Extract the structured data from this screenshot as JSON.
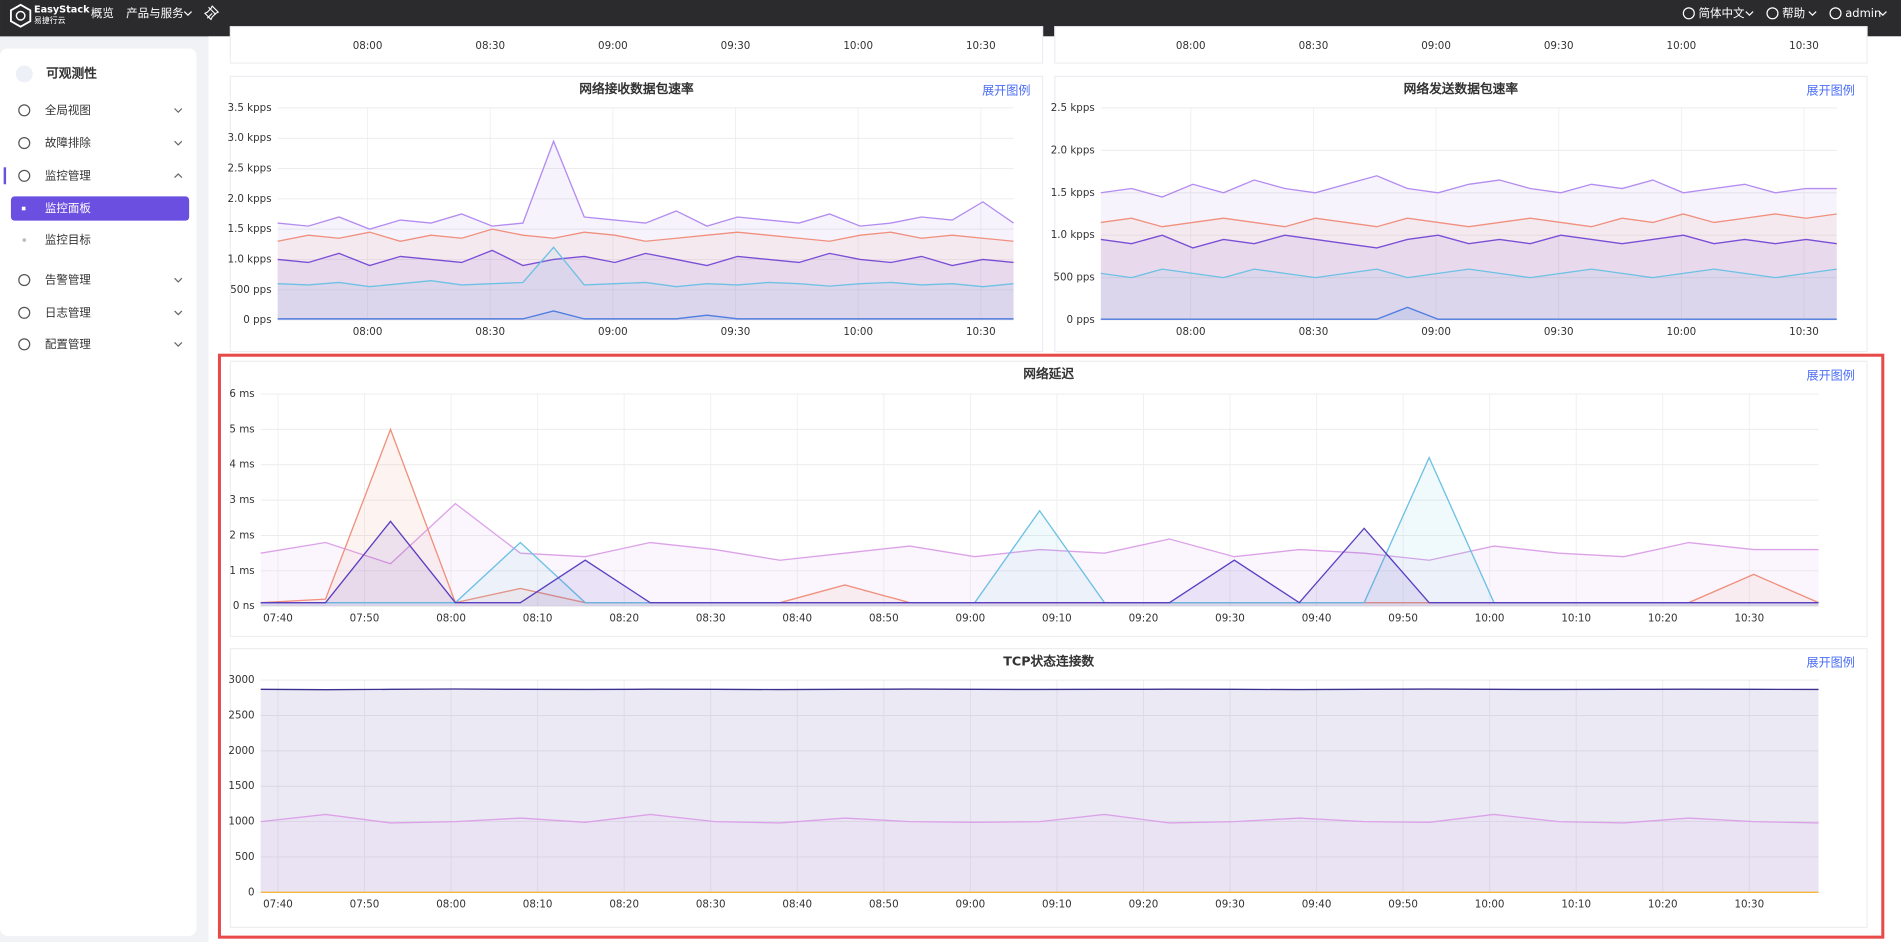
{
  "header": {
    "brand": "EasyStack",
    "brand_sub": "易捷行云",
    "nav": [
      "概览",
      "产品与服务"
    ],
    "right": [
      "简体中文",
      "帮助",
      "admin"
    ]
  },
  "sidebar": {
    "title": "可观测性",
    "items": [
      "全局视图",
      "故障排除",
      "监控管理",
      "监控面板",
      "监控目标",
      "告警管理",
      "日志管理",
      "配置管理"
    ]
  },
  "chart_data": [
    {
      "type": "line",
      "xlim": [
        458,
        638
      ],
      "xticks": [
        {
          "value": 480,
          "label": "08:00"
        },
        {
          "value": 510,
          "label": "08:30"
        },
        {
          "value": 540,
          "label": "09:00"
        },
        {
          "value": 570,
          "label": "09:30"
        },
        {
          "value": 600,
          "label": "10:00"
        },
        {
          "value": 630,
          "label": "10:30"
        }
      ],
      "series": []
    },
    {
      "type": "line",
      "xlim": [
        458,
        638
      ],
      "xticks": [
        {
          "value": 480,
          "label": "08:00"
        },
        {
          "value": 510,
          "label": "08:30"
        },
        {
          "value": 540,
          "label": "09:00"
        },
        {
          "value": 570,
          "label": "09:30"
        },
        {
          "value": 600,
          "label": "10:00"
        },
        {
          "value": 630,
          "label": "10:30"
        }
      ],
      "series": []
    },
    {
      "type": "line",
      "title": "网络接收数据包速率",
      "legend_toggle": "展开图例",
      "area": true,
      "grid": true,
      "x": [
        458,
        465.5,
        473,
        480.5,
        488,
        495.5,
        503,
        510.5,
        518,
        525.5,
        533,
        540.5,
        548,
        555.5,
        563,
        570.5,
        578,
        585.5,
        593,
        600.5,
        608,
        615.5,
        623,
        630.5,
        638
      ],
      "xlim": [
        458,
        638
      ],
      "xticks": [
        {
          "value": 480,
          "label": "08:00"
        },
        {
          "value": 510,
          "label": "08:30"
        },
        {
          "value": 540,
          "label": "09:00"
        },
        {
          "value": 570,
          "label": "09:30"
        },
        {
          "value": 600,
          "label": "10:00"
        },
        {
          "value": 630,
          "label": "10:30"
        }
      ],
      "ylim": [
        0,
        3500
      ],
      "yticks": [
        {
          "value": 0,
          "label": "0 pps"
        },
        {
          "value": 500,
          "label": "500 pps"
        },
        {
          "value": 1000,
          "label": "1.0 kpps"
        },
        {
          "value": 1500,
          "label": "1.5 kpps"
        },
        {
          "value": 2000,
          "label": "2.0 kpps"
        },
        {
          "value": 2500,
          "label": "2.5 kpps"
        },
        {
          "value": 3000,
          "label": "3.0 kpps"
        },
        {
          "value": 3500,
          "label": "3.5 kpps"
        }
      ],
      "series": [
        {
          "color": "#b48cf0",
          "values": [
            1600,
            1550,
            1700,
            1500,
            1650,
            1600,
            1750,
            1550,
            1600,
            2950,
            1700,
            1650,
            1600,
            1800,
            1550,
            1700,
            1650,
            1600,
            1750,
            1550,
            1600,
            1700,
            1650,
            1950,
            1600
          ]
        },
        {
          "color": "#f0907e",
          "values": [
            1300,
            1400,
            1350,
            1450,
            1300,
            1400,
            1350,
            1500,
            1400,
            1350,
            1450,
            1400,
            1300,
            1350,
            1400,
            1450,
            1400,
            1350,
            1300,
            1400,
            1450,
            1350,
            1400,
            1350,
            1300
          ]
        },
        {
          "color": "#7a4fd6",
          "values": [
            1000,
            950,
            1100,
            900,
            1050,
            1000,
            950,
            1150,
            900,
            1000,
            1050,
            950,
            1100,
            1000,
            900,
            1050,
            1000,
            950,
            1100,
            1000,
            950,
            1050,
            900,
            1000,
            950
          ]
        },
        {
          "color": "#6ec1e4",
          "values": [
            600,
            580,
            620,
            550,
            600,
            650,
            580,
            600,
            620,
            1200,
            580,
            600,
            620,
            550,
            600,
            580,
            620,
            600,
            560,
            600,
            620,
            580,
            600,
            550,
            600
          ]
        },
        {
          "color": "#4f7de0",
          "values": [
            20,
            20,
            20,
            20,
            20,
            20,
            20,
            20,
            20,
            150,
            20,
            20,
            20,
            20,
            80,
            20,
            20,
            20,
            20,
            20,
            20,
            20,
            20,
            20,
            20
          ]
        }
      ]
    },
    {
      "type": "line",
      "title": "网络发送数据包速率",
      "legend_toggle": "展开图例",
      "area": true,
      "grid": true,
      "x": [
        458,
        465.5,
        473,
        480.5,
        488,
        495.5,
        503,
        510.5,
        518,
        525.5,
        533,
        540.5,
        548,
        555.5,
        563,
        570.5,
        578,
        585.5,
        593,
        600.5,
        608,
        615.5,
        623,
        630.5,
        638
      ],
      "xlim": [
        458,
        638
      ],
      "xticks": [
        {
          "value": 480,
          "label": "08:00"
        },
        {
          "value": 510,
          "label": "08:30"
        },
        {
          "value": 540,
          "label": "09:00"
        },
        {
          "value": 570,
          "label": "09:30"
        },
        {
          "value": 600,
          "label": "10:00"
        },
        {
          "value": 630,
          "label": "10:30"
        }
      ],
      "ylim": [
        0,
        2500
      ],
      "yticks": [
        {
          "value": 0,
          "label": "0 pps"
        },
        {
          "value": 500,
          "label": "500 pps"
        },
        {
          "value": 1000,
          "label": "1.0 kpps"
        },
        {
          "value": 1500,
          "label": "1.5 kpps"
        },
        {
          "value": 2000,
          "label": "2.0 kpps"
        },
        {
          "value": 2500,
          "label": "2.5 kpps"
        }
      ],
      "series": [
        {
          "color": "#b48cf0",
          "values": [
            1500,
            1550,
            1450,
            1600,
            1500,
            1650,
            1550,
            1500,
            1600,
            1700,
            1550,
            1500,
            1600,
            1650,
            1550,
            1500,
            1600,
            1550,
            1650,
            1500,
            1550,
            1600,
            1500,
            1550,
            1550
          ]
        },
        {
          "color": "#f0907e",
          "values": [
            1150,
            1200,
            1100,
            1150,
            1200,
            1150,
            1100,
            1200,
            1150,
            1100,
            1200,
            1150,
            1100,
            1150,
            1200,
            1150,
            1100,
            1200,
            1150,
            1250,
            1150,
            1200,
            1250,
            1200,
            1250
          ]
        },
        {
          "color": "#7a4fd6",
          "values": [
            950,
            900,
            1000,
            850,
            950,
            900,
            1000,
            950,
            900,
            850,
            950,
            1000,
            900,
            950,
            900,
            1000,
            950,
            900,
            950,
            1000,
            900,
            950,
            900,
            950,
            900
          ]
        },
        {
          "color": "#6ec1e4",
          "values": [
            550,
            500,
            600,
            550,
            500,
            600,
            550,
            500,
            550,
            600,
            500,
            550,
            600,
            550,
            500,
            550,
            600,
            550,
            500,
            550,
            600,
            550,
            500,
            550,
            600
          ]
        },
        {
          "color": "#4f7de0",
          "values": [
            10,
            10,
            10,
            10,
            10,
            10,
            10,
            10,
            10,
            10,
            150,
            10,
            10,
            10,
            10,
            10,
            10,
            10,
            10,
            10,
            10,
            10,
            10,
            10,
            10
          ]
        }
      ]
    },
    {
      "type": "line",
      "title": "网络延迟",
      "legend_toggle": "展开图例",
      "area": true,
      "grid": true,
      "x": [
        458,
        465.5,
        473,
        480.5,
        488,
        495.5,
        503,
        510.5,
        518,
        525.5,
        533,
        540.5,
        548,
        555.5,
        563,
        570.5,
        578,
        585.5,
        593,
        600.5,
        608,
        615.5,
        623,
        630.5,
        638
      ],
      "xlim": [
        458,
        638
      ],
      "xticks": [
        {
          "value": 460,
          "label": "07:40"
        },
        {
          "value": 470,
          "label": "07:50"
        },
        {
          "value": 480,
          "label": "08:00"
        },
        {
          "value": 490,
          "label": "08:10"
        },
        {
          "value": 500,
          "label": "08:20"
        },
        {
          "value": 510,
          "label": "08:30"
        },
        {
          "value": 520,
          "label": "08:40"
        },
        {
          "value": 530,
          "label": "08:50"
        },
        {
          "value": 540,
          "label": "09:00"
        },
        {
          "value": 550,
          "label": "09:10"
        },
        {
          "value": 560,
          "label": "09:20"
        },
        {
          "value": 570,
          "label": "09:30"
        },
        {
          "value": 580,
          "label": "09:40"
        },
        {
          "value": 590,
          "label": "09:50"
        },
        {
          "value": 600,
          "label": "10:00"
        },
        {
          "value": 610,
          "label": "10:10"
        },
        {
          "value": 620,
          "label": "10:20"
        },
        {
          "value": 630,
          "label": "10:30"
        }
      ],
      "ylim": [
        0,
        6
      ],
      "yticks": [
        {
          "value": 0,
          "label": "0 ns"
        },
        {
          "value": 1,
          "label": "1 ms"
        },
        {
          "value": 2,
          "label": "2 ms"
        },
        {
          "value": 3,
          "label": "3 ms"
        },
        {
          "value": 4,
          "label": "4 ms"
        },
        {
          "value": 5,
          "label": "5 ms"
        },
        {
          "value": 6,
          "label": "6 ms"
        }
      ],
      "series": [
        {
          "color": "#dca2e8",
          "values": [
            1.5,
            1.8,
            1.2,
            2.9,
            1.5,
            1.4,
            1.8,
            1.6,
            1.3,
            1.5,
            1.7,
            1.4,
            1.6,
            1.5,
            1.9,
            1.4,
            1.6,
            1.5,
            1.3,
            1.7,
            1.5,
            1.4,
            1.8,
            1.6,
            1.6
          ]
        },
        {
          "color": "#f0907e",
          "values": [
            0.1,
            0.2,
            5.0,
            0.1,
            0.5,
            0.1,
            0.1,
            0.1,
            0.1,
            0.6,
            0.1,
            0.1,
            0.1,
            0.1,
            0.1,
            0.1,
            0.1,
            0.1,
            0.1,
            0.1,
            0.1,
            0.1,
            0.1,
            0.9,
            0.1
          ]
        },
        {
          "color": "#6ec1e4",
          "values": [
            0.1,
            0.1,
            0.1,
            0.1,
            1.8,
            0.1,
            0.1,
            0.1,
            0.1,
            0.1,
            0.1,
            0.1,
            2.7,
            0.1,
            0.1,
            0.1,
            0.1,
            0.1,
            4.2,
            0.1,
            0.1,
            0.1,
            0.1,
            0.1,
            0.1
          ]
        },
        {
          "color": "#5a3fc0",
          "values": [
            0.1,
            0.1,
            2.4,
            0.1,
            0.1,
            1.3,
            0.1,
            0.1,
            0.1,
            0.1,
            0.1,
            0.1,
            0.1,
            0.1,
            0.1,
            1.3,
            0.1,
            2.2,
            0.1,
            0.1,
            0.1,
            0.1,
            0.1,
            0.1,
            0.1
          ]
        }
      ]
    },
    {
      "type": "line",
      "title": "TCP状态连接数",
      "legend_toggle": "展开图例",
      "area": true,
      "grid": true,
      "x": [
        458,
        465.5,
        473,
        480.5,
        488,
        495.5,
        503,
        510.5,
        518,
        525.5,
        533,
        540.5,
        548,
        555.5,
        563,
        570.5,
        578,
        585.5,
        593,
        600.5,
        608,
        615.5,
        623,
        630.5,
        638
      ],
      "xlim": [
        458,
        638
      ],
      "xticks": [
        {
          "value": 460,
          "label": "07:40"
        },
        {
          "value": 470,
          "label": "07:50"
        },
        {
          "value": 480,
          "label": "08:00"
        },
        {
          "value": 490,
          "label": "08:10"
        },
        {
          "value": 500,
          "label": "08:20"
        },
        {
          "value": 510,
          "label": "08:30"
        },
        {
          "value": 520,
          "label": "08:40"
        },
        {
          "value": 530,
          "label": "08:50"
        },
        {
          "value": 540,
          "label": "09:00"
        },
        {
          "value": 550,
          "label": "09:10"
        },
        {
          "value": 560,
          "label": "09:20"
        },
        {
          "value": 570,
          "label": "09:30"
        },
        {
          "value": 580,
          "label": "09:40"
        },
        {
          "value": 590,
          "label": "09:50"
        },
        {
          "value": 600,
          "label": "10:00"
        },
        {
          "value": 610,
          "label": "10:10"
        },
        {
          "value": 620,
          "label": "10:20"
        },
        {
          "value": 630,
          "label": "10:30"
        }
      ],
      "ylim": [
        0,
        3000
      ],
      "yticks": [
        0,
        500,
        1000,
        1500,
        2000,
        2500,
        3000
      ],
      "series": [
        {
          "color": "#3b2f8f",
          "values": [
            2870,
            2865,
            2870,
            2875,
            2870,
            2868,
            2872,
            2870,
            2866,
            2870,
            2874,
            2870,
            2868,
            2870,
            2872,
            2870,
            2866,
            2870,
            2874,
            2870,
            2868,
            2870,
            2872,
            2870,
            2868
          ]
        },
        {
          "color": "#dca2e8",
          "values": [
            1000,
            1100,
            980,
            1000,
            1050,
            990,
            1100,
            1000,
            980,
            1050,
            1000,
            990,
            1000,
            1100,
            980,
            1000,
            1050,
            1000,
            990,
            1100,
            1000,
            980,
            1050,
            1000,
            980
          ]
        },
        {
          "color": "#f5b942",
          "values": [
            0,
            0,
            0,
            0,
            0,
            0,
            0,
            0,
            0,
            0,
            0,
            0,
            0,
            0,
            0,
            0,
            0,
            0,
            0,
            0,
            0,
            0,
            0,
            0,
            0
          ]
        }
      ]
    }
  ]
}
